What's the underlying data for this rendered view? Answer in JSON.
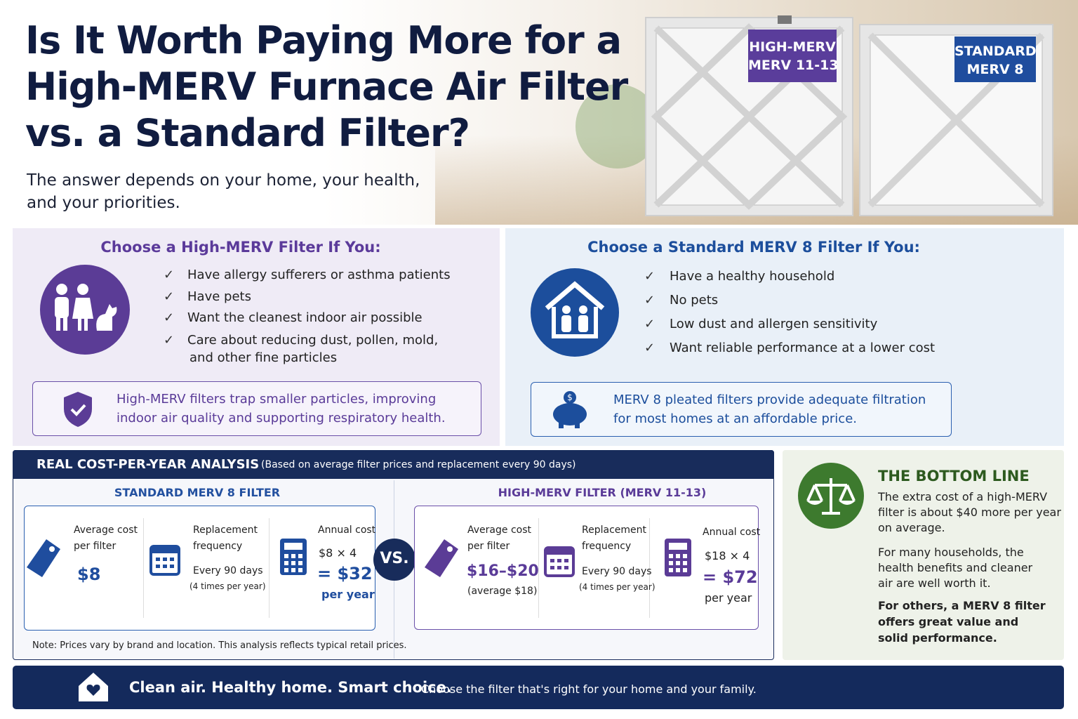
{
  "header": {
    "title_lines": [
      "Is It Worth Paying More for a",
      "High-MERV Furnace Air Filter",
      "vs. a Standard Filter?"
    ],
    "subtitle_lines": [
      "The answer depends on your home, your health,",
      "and your priorities."
    ],
    "high_merv_tag": [
      "HIGH-MERV",
      "MERV 11-13"
    ],
    "standard_tag": [
      "STANDARD",
      "MERV 8"
    ]
  },
  "high_merv_panel": {
    "heading": "Choose a High-MERV Filter If You:",
    "items": [
      "Have allergy sufferers or asthma patients",
      "Have pets",
      "Want the cleanest indoor air possible",
      "Care about reducing dust, pollen, mold,"
    ],
    "item_continuation": "and other fine particles",
    "note_lines": [
      "High-MERV filters trap smaller particles, improving",
      "indoor air quality and supporting respiratory health."
    ]
  },
  "standard_panel": {
    "heading": "Choose a Standard MERV 8 Filter If You:",
    "items": [
      "Have a healthy household",
      "No pets",
      "Low dust and allergen sensitivity",
      "Want reliable performance at a lower cost"
    ],
    "note_lines": [
      "MERV 8 pleated filters provide adequate filtration",
      "for most homes at an affordable price."
    ]
  },
  "cost_analysis": {
    "heading": "REAL COST-PER-YEAR ANALYSIS",
    "subheading": "(Based on average filter prices and replacement every 90 days)",
    "standard": {
      "title": "STANDARD MERV 8 FILTER",
      "avg_label": [
        "Average cost",
        "per filter"
      ],
      "avg_value": "$8",
      "freq_label": [
        "Replacement",
        "frequency"
      ],
      "freq_value": "Every 90 days",
      "freq_note": "(4 times per year)",
      "annual_label": "Annual cost",
      "annual_formula": "$8 × 4",
      "annual_value": "= $32",
      "annual_unit": "per year"
    },
    "vs": "VS.",
    "high_merv": {
      "title": "HIGH-MERV FILTER (MERV 11-13)",
      "avg_label": [
        "Average cost",
        "per filter"
      ],
      "avg_value": "$16–$20",
      "avg_note": "(average $18)",
      "freq_label": [
        "Replacement",
        "frequency"
      ],
      "freq_value": "Every 90 days",
      "freq_note": "(4 times per year)",
      "annual_label": "Annual cost",
      "annual_formula": "$18 × 4",
      "annual_value": "= $72",
      "annual_unit": "per year"
    },
    "note": "Note: Prices vary by brand and location. This analysis reflects typical retail prices."
  },
  "bottom_line": {
    "heading": "THE BOTTOM LINE",
    "paragraphs": [
      [
        "The extra cost of a high-MERV",
        "filter is about $40 more per year",
        "on average."
      ],
      [
        "For many households, the",
        "health benefits and cleaner",
        "air are well worth it."
      ],
      [
        "For others, a MERV 8 filter",
        "offers great value and",
        "solid performance."
      ]
    ]
  },
  "footer": {
    "tagline": "Clean air. Healthy home. Smart choice.",
    "text": "Choose the filter that's right for your home and your family."
  }
}
